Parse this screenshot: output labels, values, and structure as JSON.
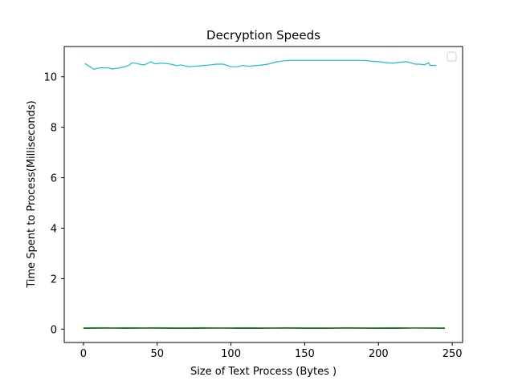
{
  "chart_data": {
    "type": "line",
    "title": "Decryption Speeds",
    "xlabel": "Size of Text Process (Bytes )",
    "ylabel": "Time Spent to Process(Milliseconds)",
    "xlim": [
      -13,
      257
    ],
    "ylim": [
      -0.53,
      11.2
    ],
    "xticks": [
      0,
      50,
      100,
      150,
      200,
      250
    ],
    "yticks": [
      0,
      2,
      4,
      6,
      8,
      10
    ],
    "grid": false,
    "legend": {
      "placement": "upper right",
      "entries": []
    },
    "series": [
      {
        "color": "#17becf",
        "x": [
          1,
          3,
          5,
          7,
          9,
          12,
          15,
          17,
          19,
          22,
          25,
          28,
          31,
          33,
          36,
          38,
          41,
          43,
          46,
          47,
          49,
          52,
          55,
          58,
          61,
          63,
          66,
          69,
          72,
          75,
          78,
          82,
          86,
          90,
          95,
          100,
          104,
          108,
          112,
          116,
          120,
          125,
          130,
          135,
          140,
          145,
          150,
          160,
          170,
          180,
          190,
          195,
          200,
          205,
          210,
          215,
          219,
          222,
          225,
          228,
          231,
          234,
          235,
          237,
          239
        ],
        "values": [
          10.53,
          10.45,
          10.38,
          10.3,
          10.33,
          10.36,
          10.35,
          10.36,
          10.31,
          10.33,
          10.36,
          10.4,
          10.46,
          10.55,
          10.53,
          10.5,
          10.47,
          10.52,
          10.6,
          10.55,
          10.51,
          10.54,
          10.53,
          10.51,
          10.48,
          10.44,
          10.47,
          10.43,
          10.4,
          10.42,
          10.43,
          10.45,
          10.47,
          10.5,
          10.5,
          10.4,
          10.4,
          10.45,
          10.42,
          10.44,
          10.46,
          10.5,
          10.58,
          10.63,
          10.65,
          10.65,
          10.65,
          10.65,
          10.65,
          10.65,
          10.65,
          10.62,
          10.6,
          10.56,
          10.54,
          10.58,
          10.6,
          10.55,
          10.5,
          10.5,
          10.48,
          10.55,
          10.45,
          10.45,
          10.45
        ]
      },
      {
        "color": "#ffd700",
        "x": [
          0,
          245
        ],
        "values": [
          0.04,
          0.04
        ]
      },
      {
        "color": "#2ca02c",
        "x": [
          0,
          10,
          20,
          30,
          40,
          50,
          60,
          70,
          80,
          90,
          100,
          110,
          120,
          130,
          140,
          150,
          160,
          170,
          180,
          190,
          200,
          210,
          220,
          230,
          245
        ],
        "values": [
          0.05,
          0.06,
          0.05,
          0.06,
          0.05,
          0.06,
          0.05,
          0.05,
          0.06,
          0.05,
          0.05,
          0.06,
          0.05,
          0.05,
          0.06,
          0.05,
          0.05,
          0.05,
          0.06,
          0.05,
          0.05,
          0.06,
          0.05,
          0.05,
          0.05
        ]
      },
      {
        "color": "#1a5e1a",
        "x": [
          0,
          15,
          30,
          45,
          60,
          75,
          90,
          105,
          120,
          135,
          150,
          165,
          180,
          195,
          210,
          225,
          245
        ],
        "values": [
          0.03,
          0.04,
          0.03,
          0.04,
          0.03,
          0.03,
          0.04,
          0.03,
          0.03,
          0.04,
          0.03,
          0.03,
          0.04,
          0.03,
          0.03,
          0.04,
          0.03
        ]
      }
    ]
  },
  "colors": {
    "axes": "#000000",
    "background": "#ffffff"
  }
}
